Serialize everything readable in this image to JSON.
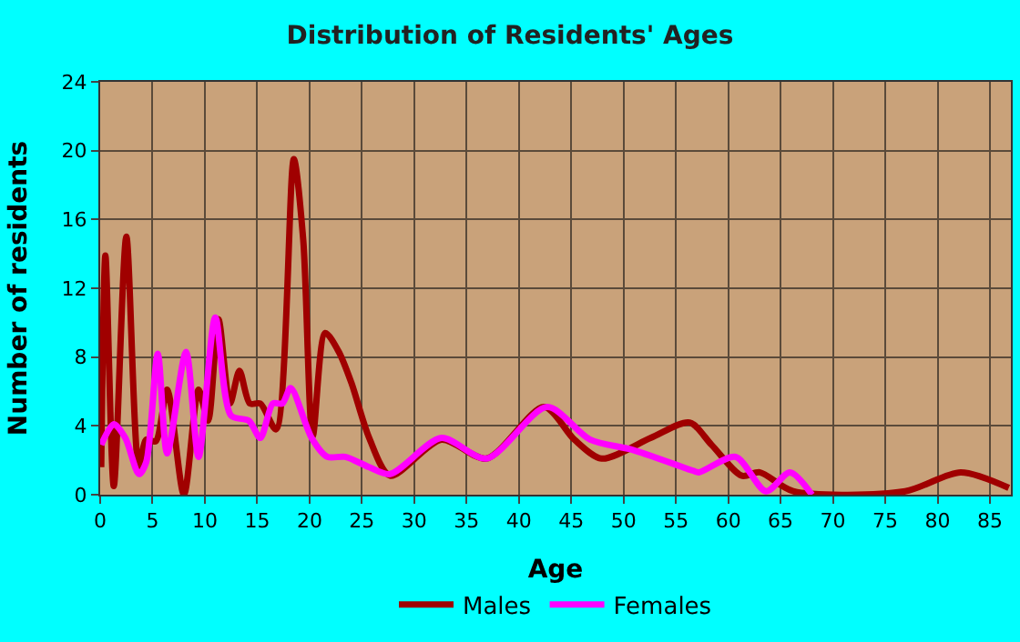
{
  "chart_data": {
    "type": "line",
    "title": "Distribution of Residents' Ages",
    "xlabel": "Age",
    "ylabel": "Number of residents",
    "xlim": [
      0,
      87
    ],
    "xticks": [
      0,
      5,
      10,
      15,
      20,
      25,
      30,
      35,
      40,
      45,
      50,
      55,
      60,
      65,
      70,
      75,
      80,
      85
    ],
    "ylim": [
      0,
      24
    ],
    "yticks": [
      0,
      4,
      8,
      12,
      16,
      20,
      24
    ],
    "grid": true,
    "legend": "bottom",
    "marker": "none",
    "line_style": "solid",
    "series": [
      {
        "name": "Males",
        "color": "#a00000",
        "x": [
          0.1,
          0.5,
          1.3,
          2.5,
          3.7,
          4.4,
          5.3,
          6.4,
          8.0,
          9.4,
          10.3,
          11.3,
          12.4,
          13.3,
          14.3,
          15.3,
          16.8,
          18.5,
          19.4,
          20.3,
          21.5,
          22.8,
          24.0,
          25.7,
          27.7,
          32.6,
          36.9,
          42.4,
          45.3,
          47.9,
          52.6,
          56.3,
          58.4,
          61.3,
          63.0,
          66.2,
          76.9,
          82.2,
          86.8
        ],
        "values": [
          1.6,
          13.9,
          0.5,
          15,
          1.6,
          3.2,
          3.1,
          6.1,
          0,
          6.1,
          4.3,
          10.2,
          5.3,
          7.2,
          5.3,
          5.3,
          3.8,
          19.5,
          14.8,
          3.4,
          9.4,
          8.3,
          6.5,
          3.3,
          1.1,
          3.2,
          2.1,
          5.1,
          3.2,
          2.1,
          3.3,
          4.2,
          2.9,
          1.1,
          1.3,
          0.2,
          0.2,
          1.3,
          0.4
        ]
      },
      {
        "name": "Females",
        "color": "#ff00ff",
        "x": [
          0.1,
          1.3,
          2.4,
          3.7,
          4.4,
          5.5,
          6.4,
          8.2,
          9.4,
          11.0,
          12.5,
          14.2,
          15.3,
          16.5,
          17.4,
          18.2,
          20.2,
          21.7,
          23.4,
          25.7,
          27.7,
          32.6,
          36.9,
          42.7,
          46.8,
          50.9,
          56.6,
          57.2,
          60.7,
          63.6,
          65.9,
          68.0
        ],
        "values": [
          2.9,
          4.1,
          3.3,
          1.2,
          1.9,
          8.2,
          2.4,
          8.3,
          2.2,
          10.3,
          4.6,
          4.3,
          3.3,
          5.3,
          5.3,
          6.2,
          3.3,
          2.2,
          2.2,
          1.6,
          1.2,
          3.3,
          2.1,
          5.1,
          3.2,
          2.6,
          1.4,
          1.3,
          2.2,
          0.2,
          1.3,
          0
        ]
      }
    ]
  }
}
